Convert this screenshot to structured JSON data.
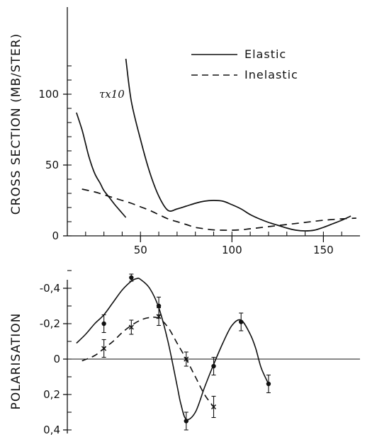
{
  "chart_data": [
    {
      "type": "line",
      "ylabel": "CROSS SECTION (MB/STER)",
      "xlabel": "",
      "xlim": [
        10,
        170
      ],
      "ylim": [
        0,
        125
      ],
      "xticks": [
        50,
        100,
        150
      ],
      "yticks": [
        0,
        50,
        100
      ],
      "legend": {
        "placement": "top-right",
        "entries": [
          "Elastic",
          "Inelastic"
        ]
      },
      "annotation": "τx10",
      "series": [
        {
          "name": "Elastic",
          "style": "solid",
          "x": [
            42,
            45,
            50,
            55,
            60,
            65,
            70,
            75,
            80,
            85,
            90,
            95,
            100,
            105,
            110,
            115,
            120,
            125,
            130,
            135,
            140,
            145,
            150,
            155,
            160,
            165
          ],
          "y": [
            125,
            95,
            68,
            45,
            28,
            18,
            19,
            21,
            23,
            24.5,
            25,
            24.5,
            22,
            19,
            15,
            12,
            9.5,
            7.5,
            5.5,
            4,
            3.5,
            4,
            6,
            8.5,
            11,
            14
          ]
        },
        {
          "name": "Inelastic",
          "style": "dashed",
          "x": [
            18,
            25,
            30,
            35,
            40,
            45,
            50,
            55,
            60,
            65,
            70,
            75,
            80,
            85,
            90,
            95,
            100,
            105,
            110,
            120,
            130,
            140,
            150,
            160,
            168
          ],
          "y": [
            33,
            31,
            29,
            27,
            25,
            23,
            20.5,
            18,
            15,
            12,
            10,
            8,
            6,
            5,
            4.2,
            4,
            4,
            4.3,
            5,
            6.5,
            8,
            9.5,
            11,
            12,
            12.5
          ]
        },
        {
          "name": "",
          "style": "solid",
          "x": [
            15,
            18,
            20,
            22,
            25,
            28,
            30,
            33,
            36,
            40,
            42
          ],
          "y": [
            87,
            75,
            65,
            55,
            44,
            37,
            32,
            27,
            22,
            16,
            13
          ]
        }
      ]
    },
    {
      "type": "line",
      "ylabel": "POLARISATION",
      "xlabel": "",
      "xlim": [
        10,
        170
      ],
      "ylim": [
        0.42,
        -0.52
      ],
      "yticks": [
        -0.4,
        -0.2,
        0,
        0.2,
        0.4
      ],
      "ytick_labels": [
        "-0,4",
        "-0,2",
        "0",
        "0,2",
        "0,4"
      ],
      "series": [
        {
          "name": "Elastic",
          "style": "solid",
          "x": [
            15,
            20,
            25,
            30,
            35,
            40,
            45,
            48,
            50,
            55,
            60,
            65,
            70,
            72,
            75,
            80,
            85,
            90,
            95,
            100,
            105,
            110,
            113,
            116,
            120
          ],
          "y": [
            -0.09,
            -0.14,
            -0.2,
            -0.25,
            -0.32,
            -0.39,
            -0.44,
            -0.455,
            -0.45,
            -0.4,
            -0.29,
            -0.1,
            0.15,
            0.25,
            0.34,
            0.3,
            0.16,
            0.03,
            -0.09,
            -0.19,
            -0.22,
            -0.14,
            -0.06,
            0.05,
            0.14
          ]
        },
        {
          "name": "Inelastic",
          "style": "dashed",
          "x": [
            18,
            25,
            30,
            35,
            40,
            45,
            50,
            55,
            60,
            65,
            70,
            75,
            80,
            85,
            90
          ],
          "y": [
            0.01,
            -0.02,
            -0.06,
            -0.1,
            -0.15,
            -0.19,
            -0.22,
            -0.235,
            -0.23,
            -0.18,
            -0.09,
            0.0,
            0.1,
            0.2,
            0.27
          ]
        }
      ],
      "points": [
        {
          "x": 30,
          "y": -0.2,
          "err": 0.05,
          "marker": "filled"
        },
        {
          "x": 45,
          "y": -0.46,
          "err": 0.02,
          "marker": "filled"
        },
        {
          "x": 60,
          "y": -0.3,
          "err": 0.05,
          "marker": "filled"
        },
        {
          "x": 75,
          "y": 0.35,
          "err": 0.05,
          "marker": "filled"
        },
        {
          "x": 90,
          "y": 0.04,
          "err": 0.05,
          "marker": "filled"
        },
        {
          "x": 105,
          "y": -0.21,
          "err": 0.05,
          "marker": "filled"
        },
        {
          "x": 120,
          "y": 0.14,
          "err": 0.05,
          "marker": "filled"
        },
        {
          "x": 30,
          "y": -0.06,
          "err": 0.05,
          "marker": "cross"
        },
        {
          "x": 45,
          "y": -0.18,
          "err": 0.04,
          "marker": "cross"
        },
        {
          "x": 60,
          "y": -0.24,
          "err": 0.05,
          "marker": "cross"
        },
        {
          "x": 75,
          "y": 0.0,
          "err": 0.04,
          "marker": "cross"
        },
        {
          "x": 90,
          "y": 0.27,
          "err": 0.06,
          "marker": "cross"
        }
      ]
    }
  ]
}
